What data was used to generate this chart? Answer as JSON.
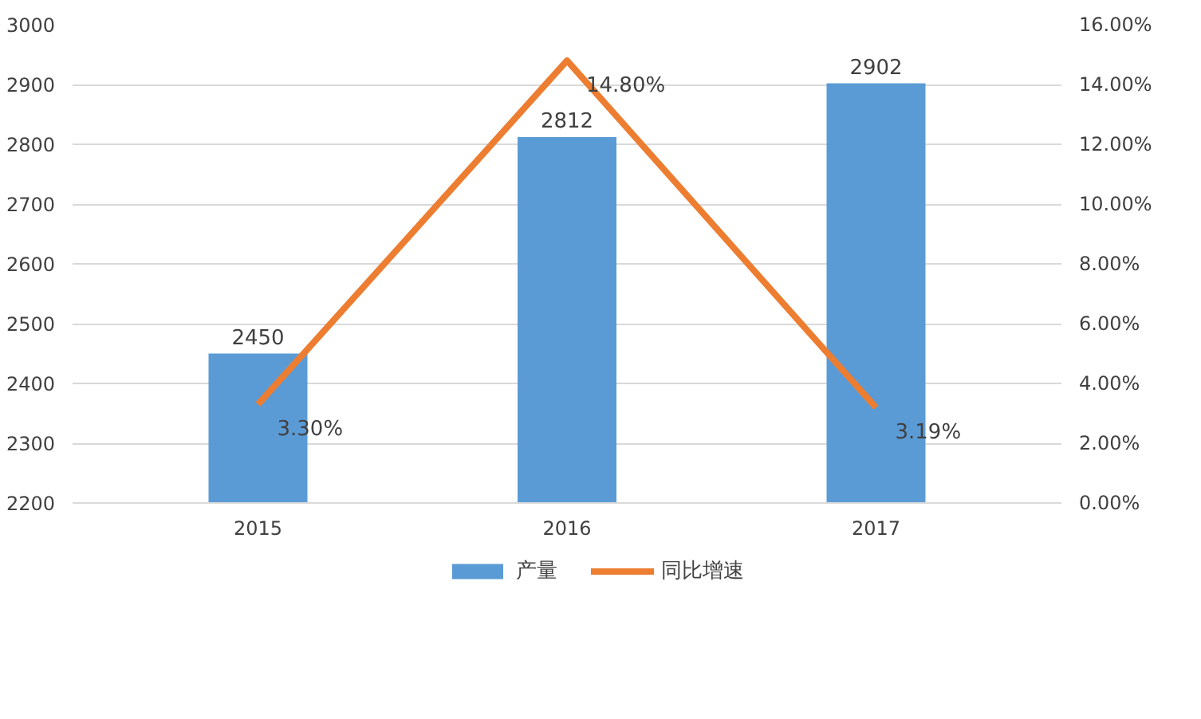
{
  "chart_data": {
    "type": "bar",
    "categories": [
      "2015",
      "2016",
      "2017"
    ],
    "series": [
      {
        "name": "产量",
        "color": "#5b9bd5",
        "values": [
          2450,
          2812,
          2902
        ],
        "value_labels": [
          "2450",
          "2812",
          "2902"
        ]
      },
      {
        "name": "同比增速",
        "type": "line",
        "axis": "y2",
        "color": "#ed7d31",
        "values": [
          3.3,
          14.8,
          3.19
        ],
        "value_labels": [
          "3.30%",
          "14.80%",
          "3.19%"
        ]
      }
    ],
    "ylim": [
      2200,
      3000
    ],
    "yticks": [
      2200,
      2300,
      2400,
      2500,
      2600,
      2700,
      2800,
      2900,
      3000
    ],
    "y2lim": [
      0,
      16
    ],
    "y2ticks": [
      {
        "value": 0,
        "label": "0.00%"
      },
      {
        "value": 2,
        "label": "2.00%"
      },
      {
        "value": 4,
        "label": "4.00%"
      },
      {
        "value": 6,
        "label": "6.00%"
      },
      {
        "value": 8,
        "label": "8.00%"
      },
      {
        "value": 10,
        "label": "10.00%"
      },
      {
        "value": 12,
        "label": "12.00%"
      },
      {
        "value": 14,
        "label": "14.00%"
      },
      {
        "value": 16,
        "label": "16.00%"
      }
    ],
    "grid": "y",
    "legend": "bottom",
    "marker": "none",
    "line_style": "solid"
  }
}
